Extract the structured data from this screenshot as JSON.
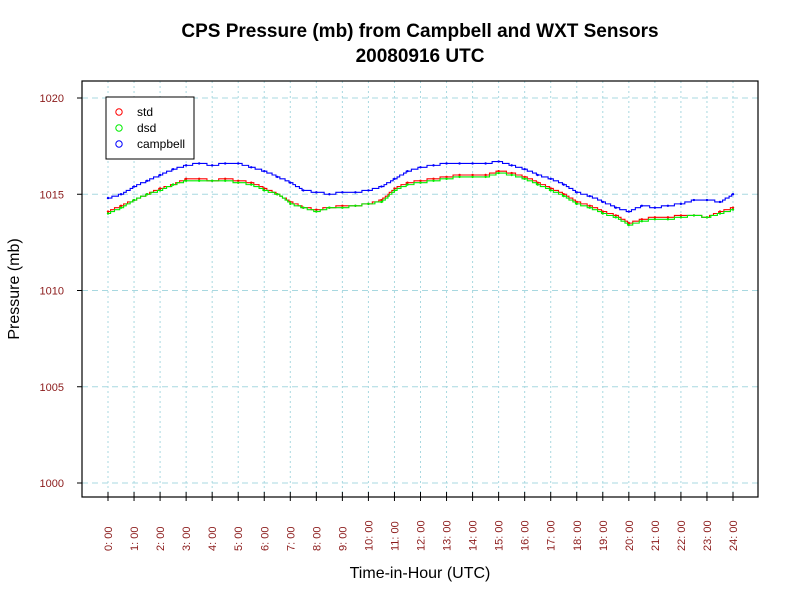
{
  "chart_data": {
    "type": "line",
    "title": "CPS Pressure (mb) from Campbell and WXT Sensors",
    "subtitle": "20080916  UTC",
    "xlabel": "Time-in-Hour (UTC)",
    "ylabel": "Pressure (mb)",
    "xlim": [
      0,
      24
    ],
    "ylim": [
      1000,
      1020
    ],
    "grid": true,
    "legend_position": "top-left",
    "x_ticks": [
      0,
      1,
      2,
      3,
      4,
      5,
      6,
      7,
      8,
      9,
      10,
      11,
      12,
      13,
      14,
      15,
      16,
      17,
      18,
      19,
      20,
      21,
      22,
      23,
      24
    ],
    "x_tick_labels": [
      "0: 00",
      "1: 00",
      "2: 00",
      "3: 00",
      "4: 00",
      "5: 00",
      "6: 00",
      "7: 00",
      "8: 00",
      "9: 00",
      "10: 00",
      "11: 00",
      "12: 00",
      "13: 00",
      "14: 00",
      "15: 00",
      "16: 00",
      "17: 00",
      "18: 00",
      "19: 00",
      "20: 00",
      "21: 00",
      "22: 00",
      "23: 00",
      "24: 00"
    ],
    "y_ticks": [
      1000,
      1005,
      1010,
      1015,
      1020
    ],
    "y_tick_labels": [
      "1000",
      "1005",
      "1010",
      "1015",
      "1020"
    ],
    "x": [
      0,
      0.5,
      1,
      1.5,
      2,
      2.5,
      3,
      3.5,
      4,
      4.5,
      5,
      5.5,
      6,
      6.5,
      7,
      7.5,
      8,
      8.5,
      9,
      9.5,
      10,
      10.5,
      11,
      11.5,
      12,
      12.5,
      13,
      13.5,
      14,
      14.5,
      15,
      15.5,
      16,
      16.5,
      17,
      17.5,
      18,
      18.5,
      19,
      19.5,
      20,
      20.5,
      21,
      21.5,
      22,
      22.5,
      23,
      23.5,
      24
    ],
    "series": [
      {
        "name": "std",
        "color": "#ff0000",
        "values": [
          1014.1,
          1014.4,
          1014.7,
          1015.0,
          1015.3,
          1015.5,
          1015.8,
          1015.8,
          1015.7,
          1015.8,
          1015.7,
          1015.6,
          1015.3,
          1015.0,
          1014.6,
          1014.3,
          1014.2,
          1014.3,
          1014.4,
          1014.4,
          1014.5,
          1014.7,
          1015.3,
          1015.6,
          1015.7,
          1015.8,
          1015.9,
          1016.0,
          1016.0,
          1016.0,
          1016.2,
          1016.1,
          1015.9,
          1015.6,
          1015.3,
          1015.0,
          1014.6,
          1014.4,
          1014.1,
          1013.9,
          1013.5,
          1013.7,
          1013.8,
          1013.8,
          1013.9,
          1013.9,
          1013.8,
          1014.1,
          1014.3
        ]
      },
      {
        "name": "dsd",
        "color": "#00ee00",
        "values": [
          1014.0,
          1014.3,
          1014.7,
          1015.0,
          1015.2,
          1015.5,
          1015.7,
          1015.7,
          1015.7,
          1015.7,
          1015.6,
          1015.5,
          1015.2,
          1015.0,
          1014.5,
          1014.3,
          1014.1,
          1014.3,
          1014.3,
          1014.4,
          1014.5,
          1014.6,
          1015.2,
          1015.5,
          1015.6,
          1015.7,
          1015.8,
          1015.9,
          1015.9,
          1015.9,
          1016.1,
          1016.0,
          1015.8,
          1015.5,
          1015.2,
          1014.9,
          1014.5,
          1014.3,
          1014.0,
          1013.8,
          1013.4,
          1013.6,
          1013.7,
          1013.7,
          1013.8,
          1013.9,
          1013.8,
          1014.0,
          1014.2
        ]
      },
      {
        "name": "campbell",
        "color": "#0000ff",
        "values": [
          1014.8,
          1015.0,
          1015.4,
          1015.7,
          1016.0,
          1016.3,
          1016.5,
          1016.6,
          1016.5,
          1016.6,
          1016.6,
          1016.4,
          1016.2,
          1015.9,
          1015.6,
          1015.2,
          1015.1,
          1015.0,
          1015.1,
          1015.1,
          1015.2,
          1015.4,
          1015.8,
          1016.2,
          1016.4,
          1016.5,
          1016.6,
          1016.6,
          1016.6,
          1016.6,
          1016.7,
          1016.5,
          1016.3,
          1016.0,
          1015.8,
          1015.5,
          1015.1,
          1014.9,
          1014.6,
          1014.3,
          1014.1,
          1014.4,
          1014.3,
          1014.4,
          1014.5,
          1014.7,
          1014.7,
          1014.6,
          1015.0
        ]
      }
    ]
  }
}
